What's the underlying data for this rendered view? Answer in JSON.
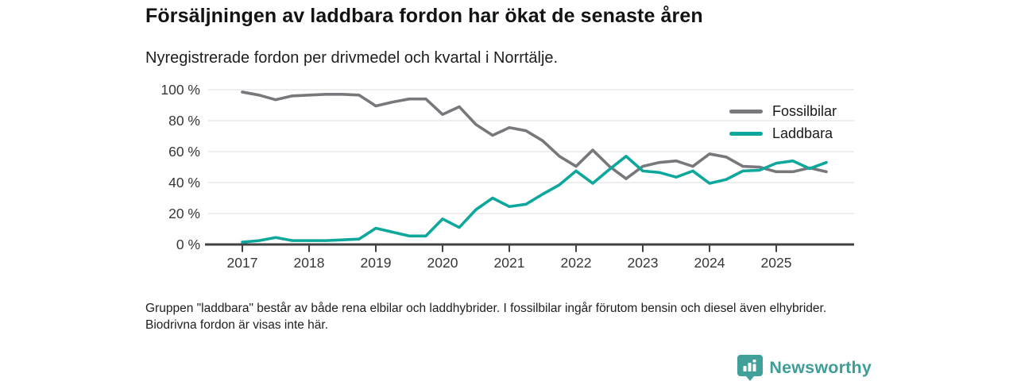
{
  "header": {
    "title": "Försäljningen av laddbara fordon har ökat de senaste åren",
    "subtitle": "Nyregistrerade fordon per drivmedel och kvartal i Norrtälje."
  },
  "chart_data": {
    "type": "line",
    "x": [
      "2017-Q1",
      "2017-Q2",
      "2017-Q3",
      "2017-Q4",
      "2018-Q1",
      "2018-Q2",
      "2018-Q3",
      "2018-Q4",
      "2019-Q1",
      "2019-Q2",
      "2019-Q3",
      "2019-Q4",
      "2020-Q1",
      "2020-Q2",
      "2020-Q3",
      "2020-Q4",
      "2021-Q1",
      "2021-Q2",
      "2021-Q3",
      "2021-Q4",
      "2022-Q1",
      "2022-Q2",
      "2022-Q3",
      "2022-Q4",
      "2023-Q1",
      "2023-Q2",
      "2023-Q3",
      "2023-Q4",
      "2024-Q1",
      "2024-Q2",
      "2024-Q3",
      "2024-Q4",
      "2025-Q1",
      "2025-Q2",
      "2025-Q3",
      "2025-Q4"
    ],
    "series": [
      {
        "name": "Fossilbilar",
        "color": "#78787c",
        "values": [
          98.5,
          96.5,
          93.5,
          96,
          96.5,
          97,
          97,
          96.5,
          89.5,
          92,
          94,
          94,
          84,
          89,
          77.5,
          70.5,
          75.5,
          73.5,
          67,
          57,
          50.5,
          61,
          50.5,
          42.5,
          50.5,
          53,
          54,
          50.5,
          58.5,
          56.5,
          50.5,
          50,
          47,
          47,
          49.5,
          47
        ]
      },
      {
        "name": "Laddbara",
        "color": "#0ea79c",
        "values": [
          1.5,
          2.5,
          4.5,
          2.5,
          2.5,
          2.5,
          3,
          3.5,
          10.5,
          8,
          5.5,
          5.5,
          16.5,
          11,
          22.5,
          30,
          24.5,
          26,
          32.5,
          38.5,
          47.5,
          39.5,
          48.5,
          57,
          47.5,
          46.5,
          43.5,
          47.5,
          39.5,
          42,
          47.5,
          48,
          52.5,
          54,
          49,
          53
        ]
      }
    ],
    "ylim": [
      0,
      100
    ],
    "yticks": [
      0,
      20,
      40,
      60,
      80,
      100
    ],
    "ytick_suffix": " %",
    "xtick_labels": [
      "2017",
      "2018",
      "2019",
      "2020",
      "2021",
      "2022",
      "2023",
      "2024",
      "2025"
    ],
    "grid": "horizontal",
    "legend_position": "top-right",
    "axis_color": "#3f4142",
    "grid_color": "#e4e4e4",
    "tick_text_color": "#353738"
  },
  "footer": {
    "note": "Gruppen \"laddbara\" består av både rena elbilar och laddhybrider. I fossilbilar ingår förutom bensin och diesel även elhybrider. Biodrivna fordon är visas inte här."
  },
  "branding": {
    "name": "Newsworthy",
    "text_color": "#3e9d98",
    "icon": "bar-chart-badge-icon",
    "icon_color": "#42a09a"
  }
}
